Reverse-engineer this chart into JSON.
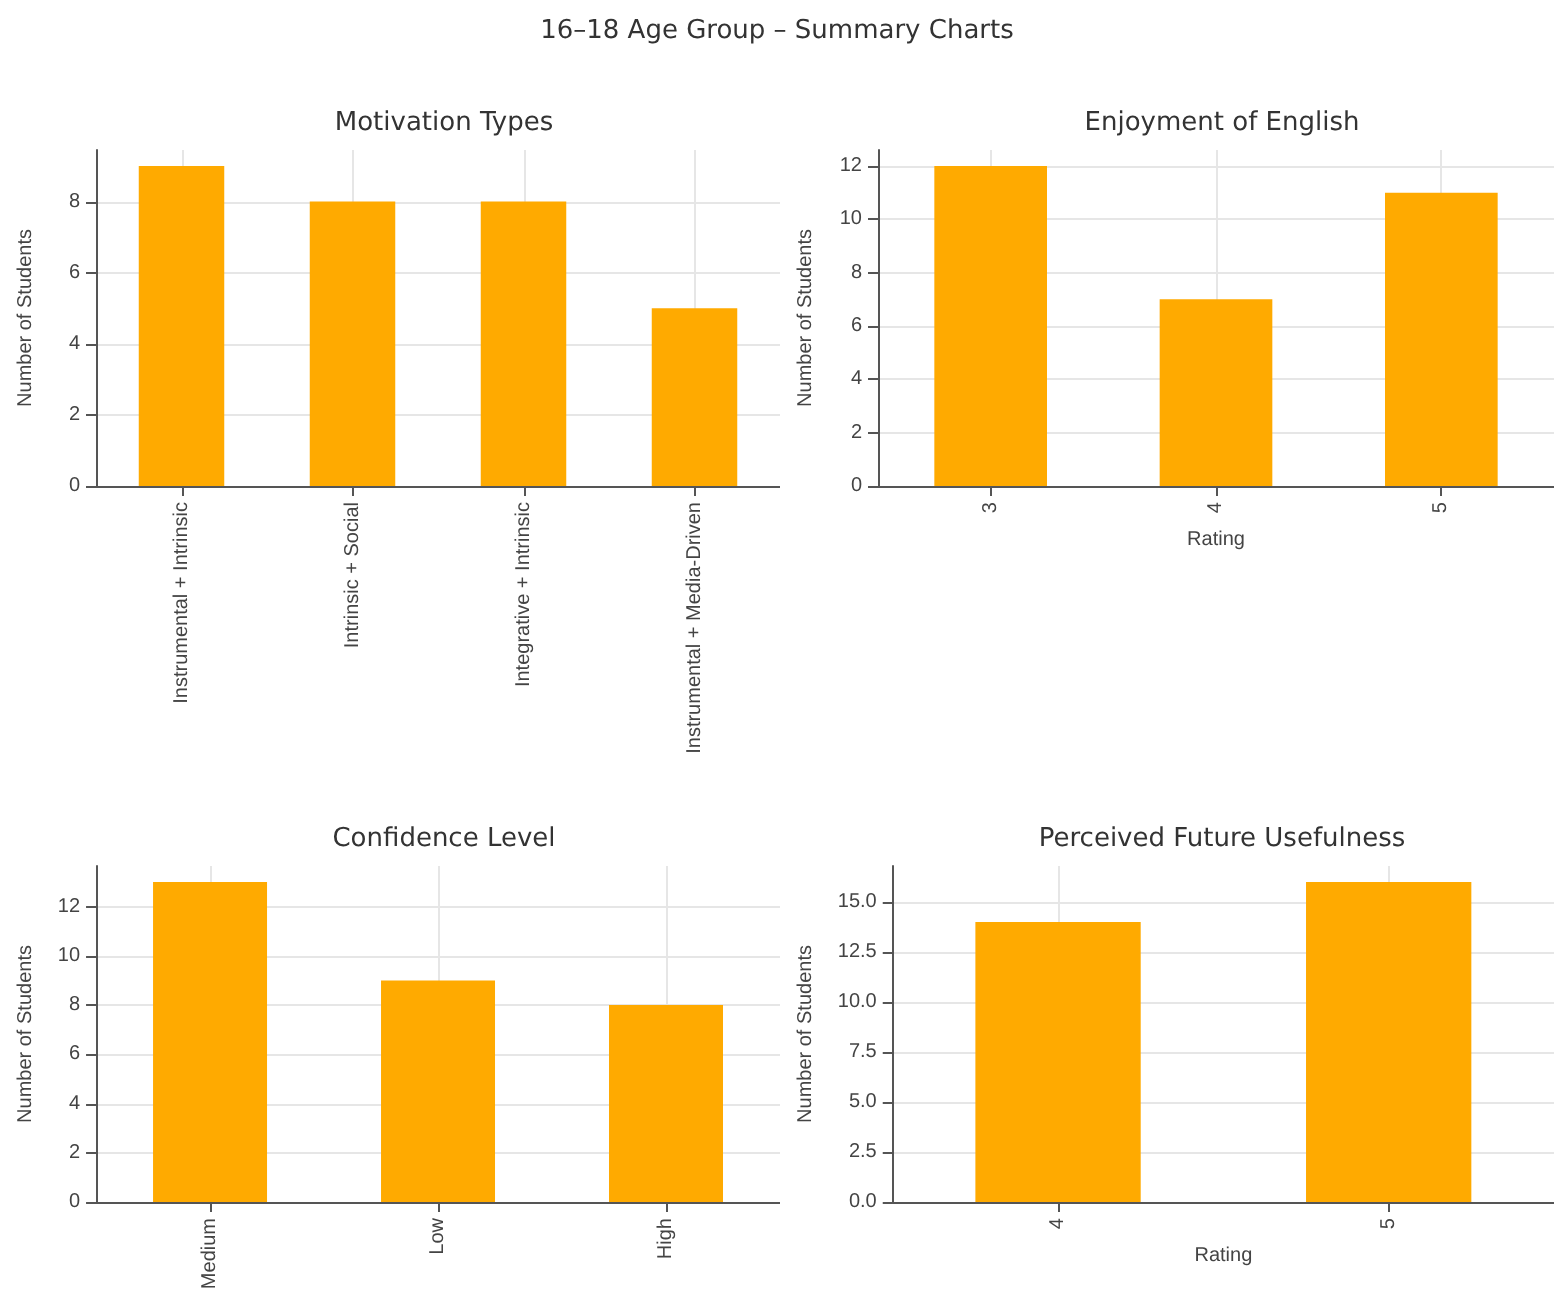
{
  "chart_data": [
    {
      "type": "bar",
      "title": "Motivation Types",
      "ylabel": "Number of Students",
      "annotations": [
        "16–18 Age Group – Summary Charts"
      ],
      "categories": [
        "Instrumental + Intrinsic",
        "Intrinsic + Social",
        "Integrative + Intrinsic",
        "Instrumental + Media-Driven"
      ],
      "values": [
        9,
        8,
        8,
        5
      ],
      "color": "#ffaa00",
      "ylim": [
        0,
        9.45
      ],
      "yticks": [
        0,
        2,
        4,
        6,
        8
      ],
      "grid": true
    },
    {
      "type": "bar",
      "title": "Enjoyment of English",
      "xlabel": "Rating",
      "ylabel": "Number of Students",
      "categories": [
        "3",
        "4",
        "5"
      ],
      "values": [
        12,
        7,
        11
      ],
      "color": "#ffaa00",
      "ylim": [
        0,
        12.6
      ],
      "yticks": [
        0,
        2,
        4,
        6,
        8,
        10,
        12
      ],
      "grid": true
    },
    {
      "type": "bar",
      "title": "Confidence Level",
      "ylabel": "Number of Students",
      "categories": [
        "Medium",
        "Low",
        "High"
      ],
      "values": [
        13,
        9,
        8
      ],
      "color": "#ffaa00",
      "ylim": [
        0,
        13.65
      ],
      "yticks": [
        0,
        2,
        4,
        6,
        8,
        10,
        12
      ],
      "grid": true
    },
    {
      "type": "bar",
      "title": "Perceived Future Usefulness",
      "xlabel": "Rating",
      "ylabel": "Number of Students",
      "categories": [
        "4",
        "5"
      ],
      "values": [
        14,
        16
      ],
      "color": "#ffaa00",
      "ylim": [
        0,
        16.8
      ],
      "yticks": [
        {
          "value": 0,
          "label": "0.0"
        },
        {
          "value": 2.5,
          "label": "2.5"
        },
        {
          "value": 5,
          "label": "5.0"
        },
        {
          "value": 7.5,
          "label": "7.5"
        },
        {
          "value": 10,
          "label": "10.0"
        },
        {
          "value": 12.5,
          "label": "12.5"
        },
        {
          "value": 15,
          "label": "15.0"
        }
      ],
      "grid": true
    }
  ]
}
